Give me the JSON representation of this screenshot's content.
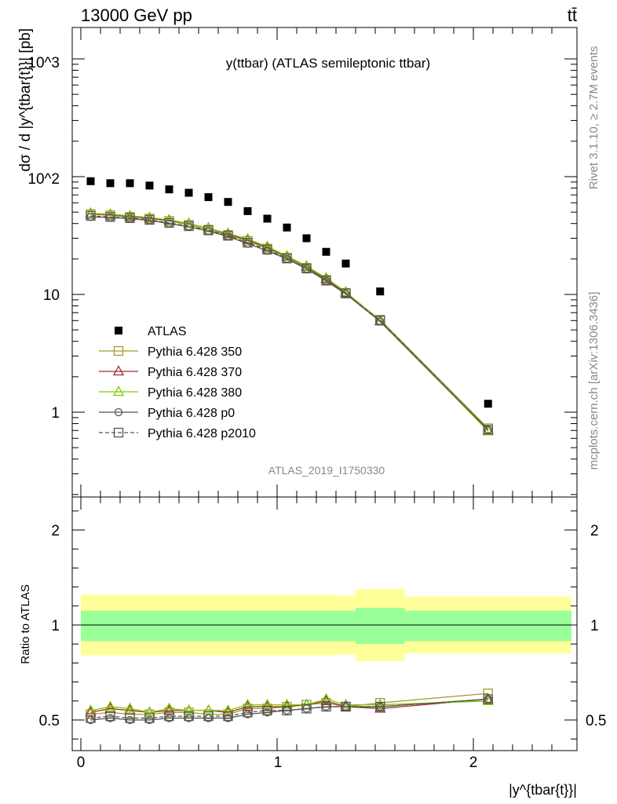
{
  "header": {
    "collision": "13000 GeV pp",
    "process": "tt̄"
  },
  "side_labels": {
    "rivet": "Rivet 3.1.10, ≥ 2.7M events",
    "mcplots": "mcplots.cern.ch [arXiv:1306.3436]"
  },
  "chart_data": [
    {
      "type": "scatter",
      "panel": "main",
      "title": "y(ttbar) (ATLAS semileptonic ttbar)",
      "watermark": "ATLAS_2019_I1750330",
      "ylabel": "dσ / d |y^{tbar{t}}| [pb]",
      "yscale": "log",
      "ylim": [
        0.2,
        2000
      ],
      "xlim": [
        -0.1,
        2.5
      ],
      "y_ticks": [
        "1",
        "10",
        "10^2",
        "10^3"
      ],
      "legend_position": "middle-left",
      "x": [
        0.05,
        0.15,
        0.25,
        0.35,
        0.45,
        0.55,
        0.65,
        0.75,
        0.85,
        0.95,
        1.05,
        1.15,
        1.25,
        1.35,
        1.525,
        2.075
      ],
      "series": [
        {
          "name": "ATLAS",
          "marker": "filled-square",
          "color": "#000000",
          "values": [
            91.5,
            88.0,
            88.0,
            84.0,
            78.0,
            73.0,
            67.0,
            61.0,
            51.0,
            44.0,
            37.0,
            30.0,
            23.0,
            18.3,
            10.6,
            1.18
          ]
        },
        {
          "name": "Pythia 6.428 350",
          "marker": "open-square",
          "color": "#a09c30",
          "values": [
            48.0,
            47.0,
            45.5,
            44.0,
            42.0,
            39.0,
            35.5,
            32.0,
            28.5,
            24.5,
            20.5,
            16.8,
            13.3,
            10.3,
            6.1,
            0.73
          ]
        },
        {
          "name": "Pythia 6.428 370",
          "marker": "open-triangle",
          "color": "#a52a2a",
          "values": [
            48.5,
            47.5,
            46.0,
            44.5,
            42.5,
            40.0,
            36.5,
            32.5,
            29.0,
            25.0,
            21.0,
            17.2,
            13.5,
            10.3,
            5.9,
            0.7
          ]
        },
        {
          "name": "Pythia 6.428 380",
          "marker": "open-triangle",
          "color": "#7ccd00",
          "values": [
            49.0,
            48.0,
            46.5,
            45.0,
            43.0,
            40.0,
            36.5,
            33.0,
            29.5,
            25.5,
            21.2,
            17.4,
            13.8,
            10.5,
            6.0,
            0.69
          ]
        },
        {
          "name": "Pythia 6.428 p0",
          "marker": "open-circle",
          "color": "#555555",
          "values": [
            45.5,
            45.0,
            44.0,
            42.5,
            40.0,
            37.5,
            34.5,
            31.0,
            27.0,
            23.5,
            20.0,
            16.5,
            13.0,
            10.1,
            5.9,
            0.71
          ]
        },
        {
          "name": "Pythia 6.428 p2010",
          "marker": "open-square",
          "color": "#555555",
          "dashed": true,
          "values": [
            46.5,
            45.5,
            44.5,
            43.0,
            40.5,
            38.0,
            35.0,
            31.5,
            27.5,
            24.0,
            20.2,
            16.6,
            13.1,
            10.2,
            6.0,
            0.71
          ]
        }
      ]
    },
    {
      "type": "scatter",
      "panel": "ratio",
      "ylabel": "Ratio to ATLAS",
      "xlabel": "|y^{tbar{t}}|",
      "ylim": [
        0.33,
        2.3
      ],
      "xlim": [
        -0.1,
        2.5
      ],
      "y_ticks": [
        "0.5",
        "1",
        "2"
      ],
      "x_ticks": [
        "0",
        "1",
        "2"
      ],
      "band_edges": [
        0.0,
        0.1,
        0.2,
        0.3,
        0.4,
        0.5,
        0.6,
        0.7,
        0.8,
        0.9,
        1.0,
        1.1,
        1.2,
        1.3,
        1.4,
        1.65,
        2.5
      ],
      "band_inner": [
        [
          0.915,
          1.075
        ],
        [
          0.915,
          1.075
        ],
        [
          0.915,
          1.075
        ],
        [
          0.915,
          1.075
        ],
        [
          0.915,
          1.075
        ],
        [
          0.915,
          1.075
        ],
        [
          0.915,
          1.075
        ],
        [
          0.915,
          1.075
        ],
        [
          0.915,
          1.075
        ],
        [
          0.915,
          1.075
        ],
        [
          0.915,
          1.075
        ],
        [
          0.915,
          1.075
        ],
        [
          0.915,
          1.075
        ],
        [
          0.915,
          1.075
        ],
        [
          0.9,
          1.09
        ],
        [
          0.915,
          1.075
        ]
      ],
      "band_outer": [
        [
          0.84,
          1.16
        ],
        [
          0.84,
          1.16
        ],
        [
          0.84,
          1.16
        ],
        [
          0.84,
          1.16
        ],
        [
          0.84,
          1.16
        ],
        [
          0.84,
          1.16
        ],
        [
          0.84,
          1.16
        ],
        [
          0.84,
          1.16
        ],
        [
          0.84,
          1.16
        ],
        [
          0.84,
          1.16
        ],
        [
          0.84,
          1.16
        ],
        [
          0.84,
          1.16
        ],
        [
          0.84,
          1.16
        ],
        [
          0.845,
          1.155
        ],
        [
          0.81,
          1.19
        ],
        [
          0.85,
          1.15
        ]
      ],
      "x": [
        0.05,
        0.15,
        0.25,
        0.35,
        0.45,
        0.55,
        0.65,
        0.75,
        0.85,
        0.95,
        1.05,
        1.15,
        1.25,
        1.35,
        1.525,
        2.075
      ],
      "series": [
        {
          "name": "Pythia 6.428 350",
          "marker": "open-square",
          "color": "#a09c30",
          "values": [
            0.53,
            0.54,
            0.53,
            0.53,
            0.54,
            0.54,
            0.53,
            0.53,
            0.56,
            0.56,
            0.57,
            0.58,
            0.59,
            0.57,
            0.59,
            0.64
          ]
        },
        {
          "name": "Pythia 6.428 370",
          "marker": "open-triangle",
          "color": "#a52a2a",
          "values": [
            0.54,
            0.56,
            0.55,
            0.54,
            0.55,
            0.55,
            0.55,
            0.54,
            0.57,
            0.57,
            0.57,
            0.58,
            0.6,
            0.57,
            0.56,
            0.61
          ]
        },
        {
          "name": "Pythia 6.428 380",
          "marker": "open-triangle",
          "color": "#7ccd00",
          "values": [
            0.55,
            0.57,
            0.56,
            0.54,
            0.56,
            0.55,
            0.55,
            0.55,
            0.58,
            0.58,
            0.58,
            0.58,
            0.61,
            0.58,
            0.58,
            0.6
          ]
        },
        {
          "name": "Pythia 6.428 p0",
          "marker": "open-circle",
          "color": "#555555",
          "values": [
            0.5,
            0.51,
            0.5,
            0.5,
            0.51,
            0.51,
            0.51,
            0.51,
            0.53,
            0.54,
            0.55,
            0.56,
            0.57,
            0.57,
            0.57,
            0.61
          ]
        },
        {
          "name": "Pythia 6.428 p2010",
          "marker": "open-square",
          "color": "#555555",
          "dashed": true,
          "values": [
            0.51,
            0.52,
            0.51,
            0.51,
            0.52,
            0.52,
            0.52,
            0.52,
            0.54,
            0.55,
            0.55,
            0.56,
            0.57,
            0.57,
            0.57,
            0.61
          ]
        }
      ]
    }
  ]
}
